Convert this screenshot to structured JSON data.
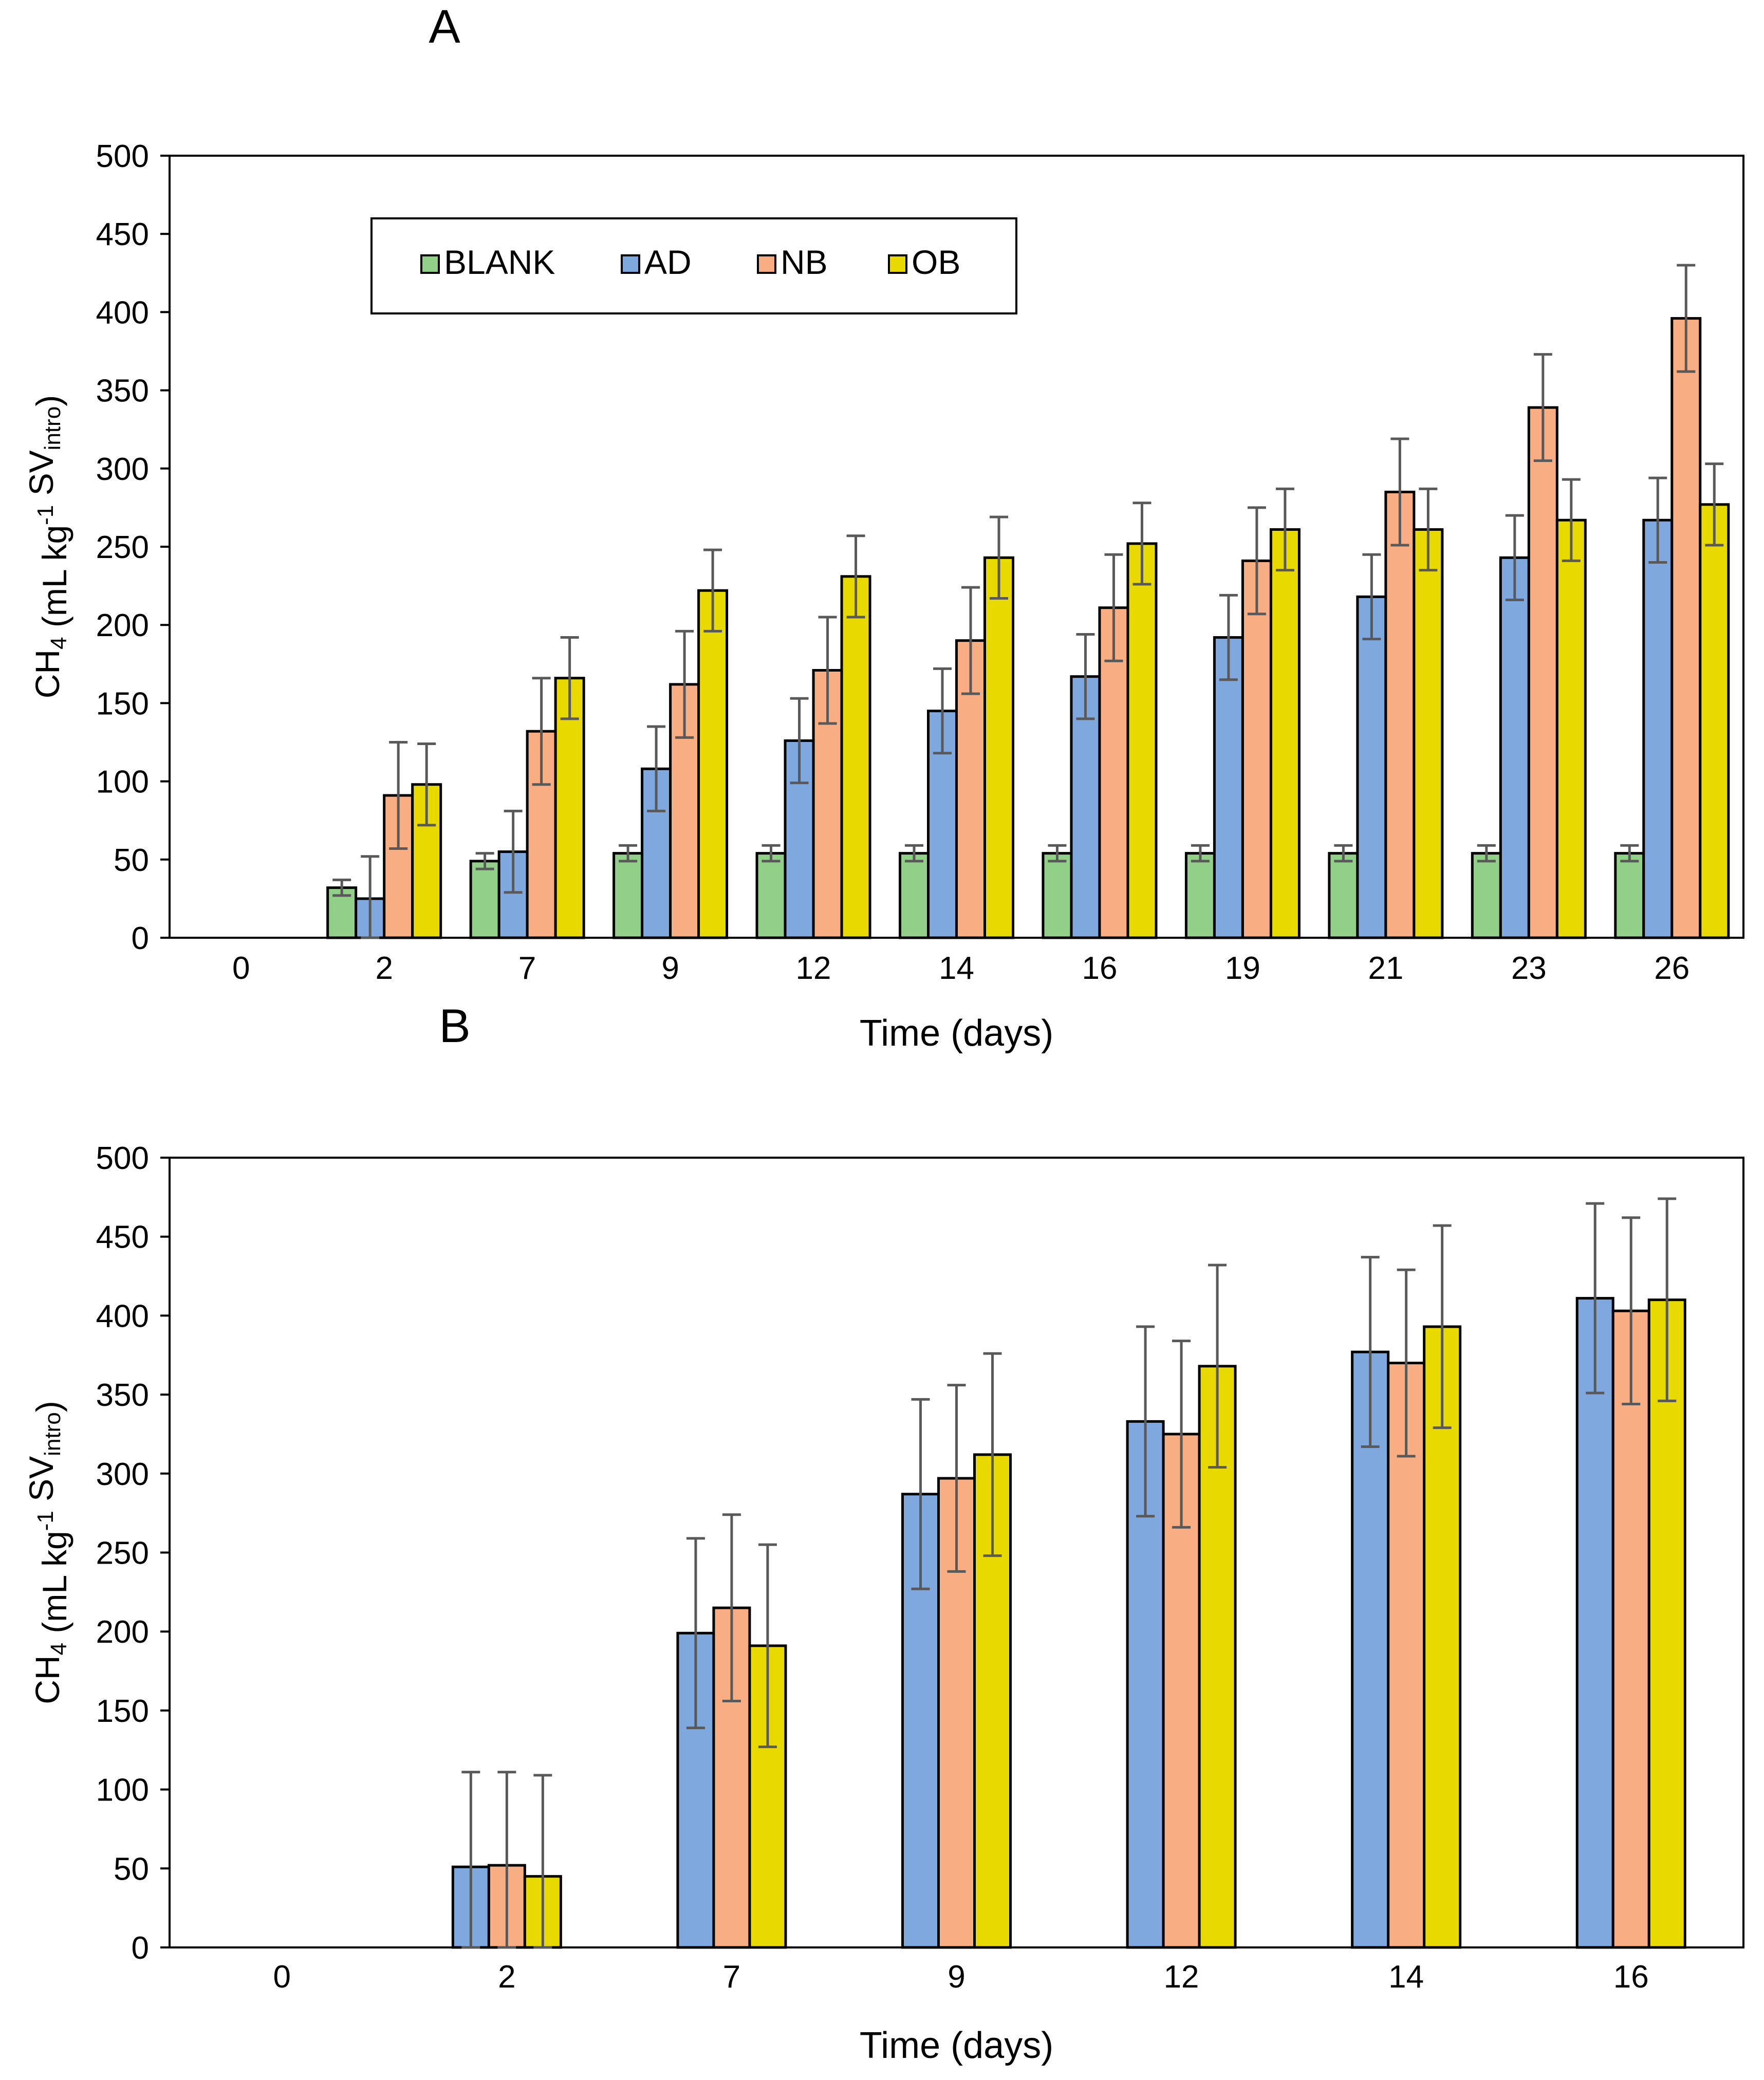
{
  "chart_data": [
    {
      "type": "bar",
      "panel_label": "A",
      "xlabel": "Time (days)",
      "ylabel": {
        "pre": "CH",
        "sub": "4",
        "mid": " (mL kg",
        "sup": "-1",
        "post": " SV",
        "sub2": "intro",
        "end": ")"
      },
      "ylim": [
        0,
        500
      ],
      "yticks": [
        "0",
        "50",
        "100",
        "150",
        "200",
        "250",
        "300",
        "350",
        "400",
        "450",
        "500"
      ],
      "legend_position": "top-left",
      "categories": [
        "0",
        "2",
        "7",
        "9",
        "12",
        "14",
        "16",
        "19",
        "21",
        "23",
        "26"
      ],
      "series": [
        {
          "name": "BLANK",
          "color": "#92D08A",
          "values": [
            0,
            32,
            49,
            54,
            54,
            54,
            54,
            54,
            54,
            54,
            54
          ],
          "errors": [
            0,
            5,
            5,
            5,
            5,
            5,
            5,
            5,
            5,
            5,
            5
          ]
        },
        {
          "name": "AD",
          "color": "#7EA8DE",
          "values": [
            0,
            25,
            55,
            108,
            126,
            145,
            167,
            192,
            218,
            243,
            267
          ],
          "errors": [
            0,
            27,
            26,
            27,
            27,
            27,
            27,
            27,
            27,
            27,
            27
          ]
        },
        {
          "name": "NB",
          "color": "#F8AE82",
          "values": [
            0,
            91,
            132,
            162,
            171,
            190,
            211,
            241,
            285,
            339,
            396
          ],
          "errors": [
            0,
            34,
            34,
            34,
            34,
            34,
            34,
            34,
            34,
            34,
            34
          ]
        },
        {
          "name": "OB",
          "color": "#E8DA00",
          "values": [
            0,
            98,
            166,
            222,
            231,
            243,
            252,
            261,
            261,
            267,
            277
          ],
          "errors": [
            0,
            26,
            26,
            26,
            26,
            26,
            26,
            26,
            26,
            26,
            26
          ]
        }
      ]
    },
    {
      "type": "bar",
      "panel_label": "B",
      "xlabel": "Time (days)",
      "ylabel": {
        "pre": "CH",
        "sub": "4",
        "mid": " (mL kg",
        "sup": "-1",
        "post": " SV",
        "sub2": "intro",
        "end": ")"
      },
      "ylim": [
        0,
        500
      ],
      "yticks": [
        "0",
        "50",
        "100",
        "150",
        "200",
        "250",
        "300",
        "350",
        "400",
        "450",
        "500"
      ],
      "categories": [
        "0",
        "2",
        "7",
        "9",
        "12",
        "14",
        "16"
      ],
      "series": [
        {
          "name": "AD",
          "color": "#7EA8DE",
          "values": [
            0,
            51,
            199,
            287,
            333,
            377,
            411
          ],
          "errors": [
            0,
            60,
            60,
            60,
            60,
            60,
            60
          ]
        },
        {
          "name": "NB",
          "color": "#F8AE82",
          "values": [
            0,
            52,
            215,
            297,
            325,
            370,
            403
          ],
          "errors": [
            0,
            59,
            59,
            59,
            59,
            59,
            59
          ]
        },
        {
          "name": "OB",
          "color": "#E8DA00",
          "values": [
            0,
            45,
            191,
            312,
            368,
            393,
            410
          ],
          "errors": [
            0,
            64,
            64,
            64,
            64,
            64,
            64
          ]
        }
      ]
    }
  ]
}
